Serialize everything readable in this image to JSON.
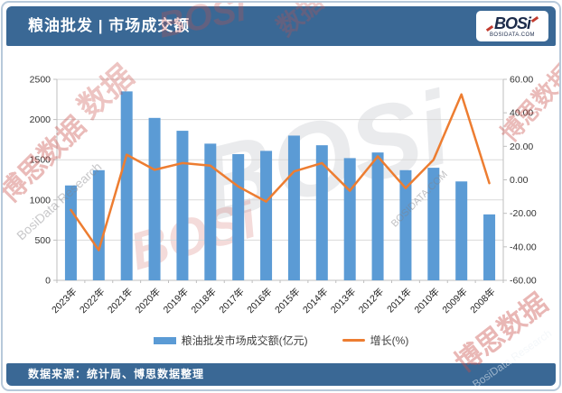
{
  "header": {
    "title": "粮油批发 | 市场成交额",
    "logo_text": "BOSi",
    "logo_subtext": "BOSIDATA.COM"
  },
  "footer": {
    "source": "数据来源：统计局、博思数据整理"
  },
  "watermarks": {
    "cn": "博思数据",
    "cn_short": "数据",
    "en": "BosiData Research",
    "logo": "BOSi",
    "domain": "BOSIDATA.COM"
  },
  "chart_data": {
    "type": "bar",
    "subtype": "bar+line-combo",
    "title": "粮油批发 | 市场成交额",
    "categories": [
      "2023年",
      "2022年",
      "2021年",
      "2020年",
      "2019年",
      "2018年",
      "2017年",
      "2016年",
      "2015年",
      "2014年",
      "2013年",
      "2012年",
      "2011年",
      "2010年",
      "2009年",
      "2008年"
    ],
    "series": [
      {
        "name": "粮油批发市场成交额(亿元)",
        "type": "bar",
        "axis": "left",
        "color": "#5b9bd5",
        "values": [
          1180,
          1370,
          2350,
          2020,
          1860,
          1700,
          1570,
          1610,
          1800,
          1680,
          1520,
          1590,
          1370,
          1400,
          1230,
          820
        ]
      },
      {
        "name": "增长(%)",
        "type": "line",
        "axis": "right",
        "color": "#ed7d31",
        "values": [
          -18,
          -42,
          15,
          6,
          10,
          8.5,
          -4,
          -13,
          5,
          10,
          -6.5,
          14,
          -5,
          12,
          51,
          -2
        ]
      }
    ],
    "axis_left": {
      "min": 0,
      "max": 2500,
      "step": 500,
      "labels": [
        "0",
        "500",
        "1000",
        "1500",
        "2000",
        "2500"
      ]
    },
    "axis_right": {
      "min": -60,
      "max": 60,
      "step": 20,
      "labels": [
        "-60.00",
        "-40.00",
        "-20.00",
        "0.00",
        "20.00",
        "40.00",
        "60.00"
      ]
    },
    "grid": "horizontal",
    "legend_position": "bottom",
    "colors": {
      "grid": "#d9d9d9",
      "axis": "#bfbfbf",
      "tick_text": "#333333",
      "header_bar": "#3a6895"
    }
  }
}
